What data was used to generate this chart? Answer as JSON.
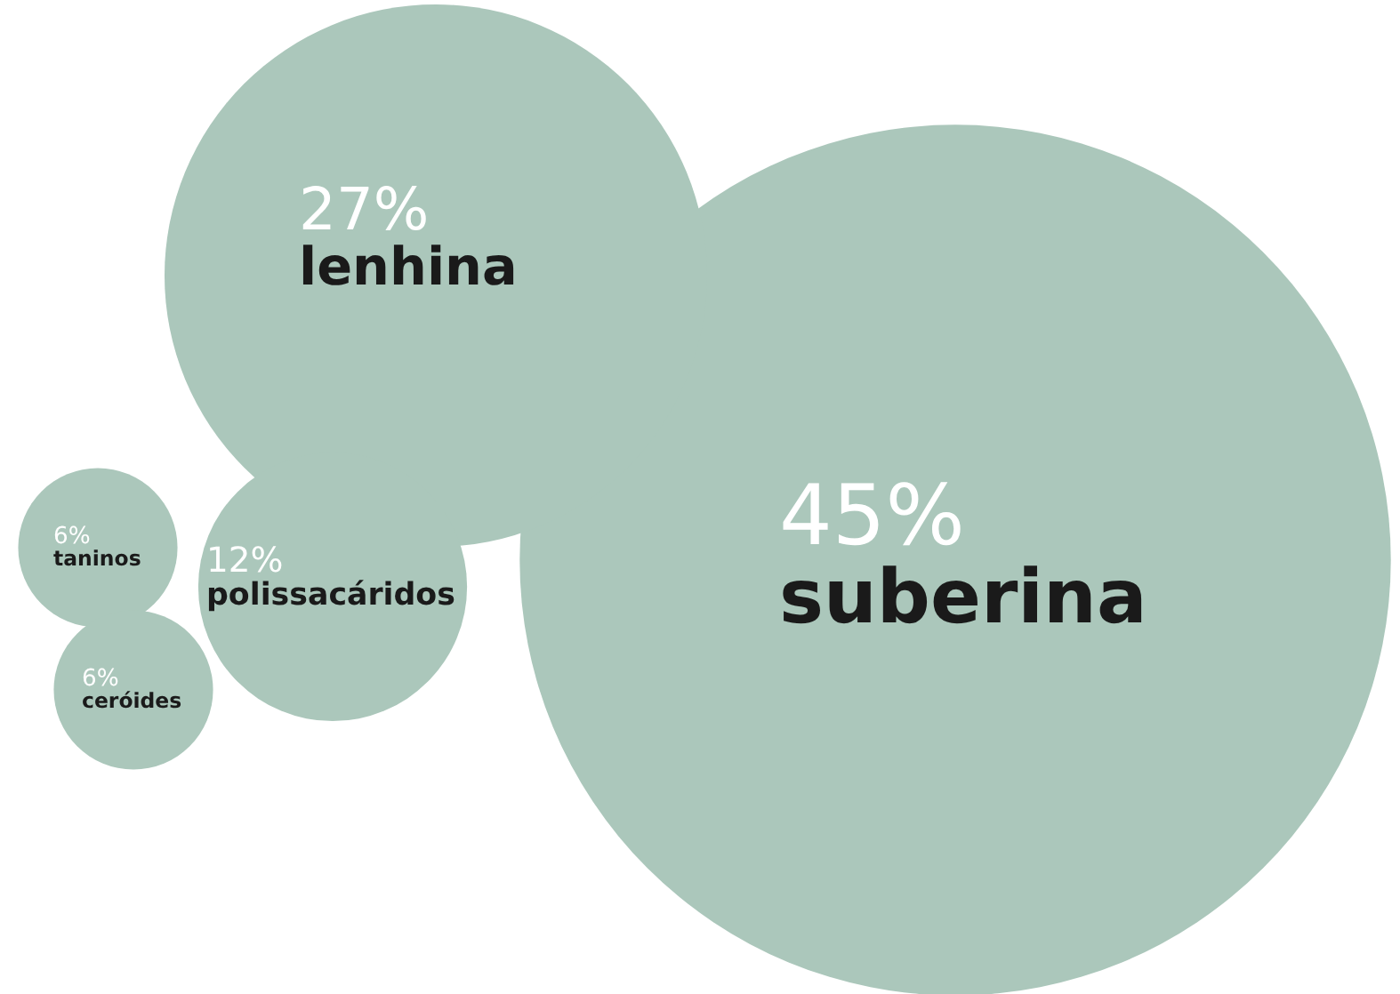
{
  "chart_data": {
    "type": "other",
    "categories": [
      "suberina",
      "lenhina",
      "polissacáridos",
      "taninos",
      "ceróides"
    ],
    "values": [
      45,
      27,
      12,
      6,
      6
    ],
    "value_labels": [
      "45%",
      "27%",
      "12%",
      "6%",
      "6%"
    ],
    "color": "#abc7bb"
  }
}
